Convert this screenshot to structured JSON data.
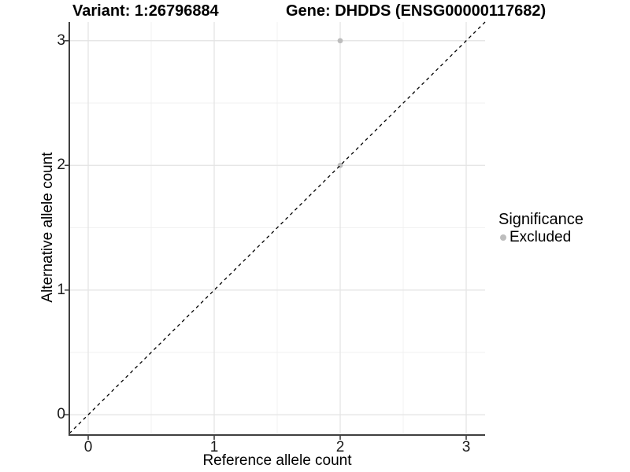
{
  "chart_data": {
    "type": "scatter",
    "titles": {
      "variant": "Variant: 1:26796884",
      "gene": "Gene: DHDDS (ENSG00000117682)"
    },
    "xlabel": "Reference allele count",
    "ylabel": "Alternative allele count",
    "xlim": [
      -0.15,
      3.15
    ],
    "ylim": [
      -0.15,
      3.15
    ],
    "x_ticks": [
      0,
      1,
      2,
      3
    ],
    "y_ticks": [
      0,
      1,
      2,
      3
    ],
    "x_minor_ticks": [
      0.5,
      1.5,
      2.5
    ],
    "y_minor_ticks": [
      0.5,
      1.5,
      2.5
    ],
    "grid": true,
    "series": [
      {
        "name": "Excluded",
        "points": [
          [
            2,
            2
          ],
          [
            2,
            3
          ]
        ],
        "color": "#bdbdbd",
        "marker_radius": 3.4
      }
    ],
    "reference_line": {
      "type": "identity",
      "from": [
        -0.15,
        -0.15
      ],
      "to": [
        3.15,
        3.15
      ],
      "style": "dashed",
      "color": "#000000"
    },
    "legend": {
      "title": "Significance",
      "position": "right",
      "items": [
        {
          "label": "Excluded",
          "color": "#bdbdbd"
        }
      ]
    },
    "colors": {
      "background": "#ffffff",
      "grid_major": "#e3e3e3",
      "grid_minor": "#f1f1f1",
      "axis_line": "#404040",
      "tick_mark": "#404040",
      "tick_text": "#1a1a1a"
    }
  }
}
